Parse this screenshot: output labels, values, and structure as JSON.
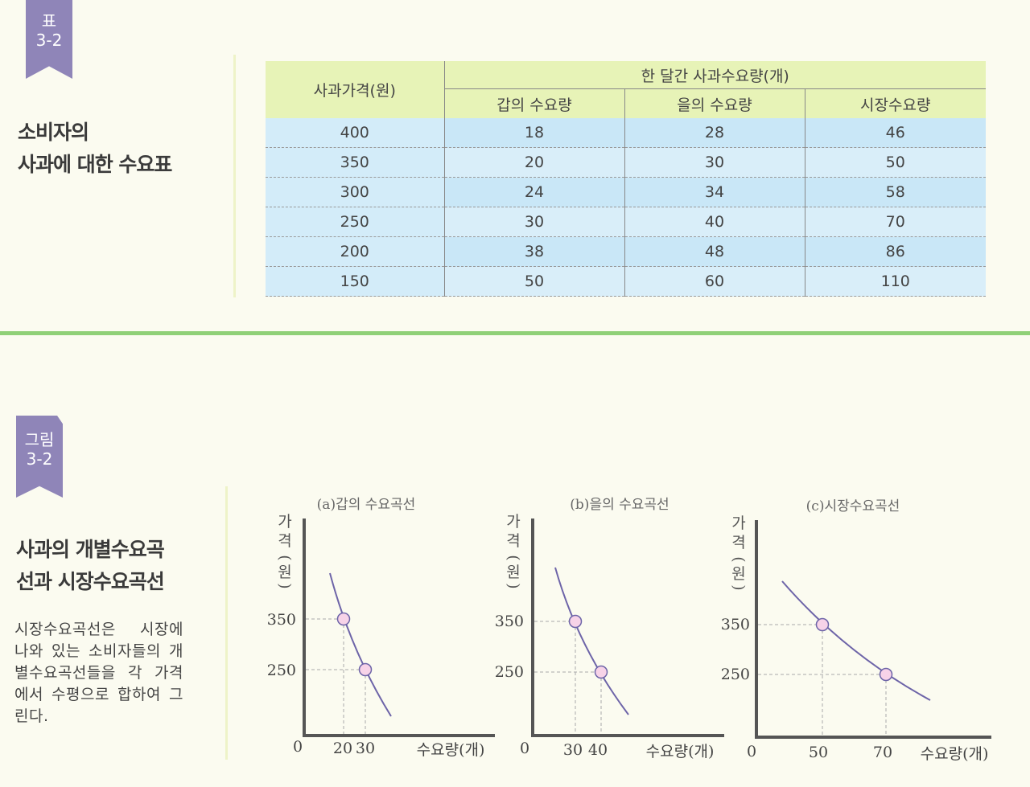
{
  "table_label": {
    "kind": "표",
    "number": "3-2"
  },
  "table_title": [
    "소비자의",
    "사과에 대한 수요표"
  ],
  "table": {
    "price_header": "사과가격(원)",
    "group_header": "한 달간 사과수요량(개)",
    "columns": [
      "갑의 수요량",
      "을의 수요량",
      "시장수요량"
    ],
    "rows": [
      [
        "400",
        "18",
        "28",
        "46"
      ],
      [
        "350",
        "20",
        "30",
        "50"
      ],
      [
        "300",
        "24",
        "34",
        "58"
      ],
      [
        "250",
        "30",
        "40",
        "70"
      ],
      [
        "200",
        "38",
        "48",
        "86"
      ],
      [
        "150",
        "50",
        "60",
        "110"
      ]
    ]
  },
  "figure_label": {
    "kind": "그림",
    "number": "3-2"
  },
  "figure_title": [
    "사과의 개별수요곡",
    "선과 시장수요곡선"
  ],
  "figure_desc": "시장수요곡선은 시장에 나와 있는 소비자들의 개별수요곡선들을 각 가격에서 수평으로 합하여 그린다.",
  "charts": [
    {
      "title": "(a)갑의 수요곡선",
      "ylabel": [
        "가",
        "격",
        "(",
        "원",
        ")"
      ],
      "xlabel": "수요량(개)",
      "origin": "0",
      "y_ticks": [
        "350",
        "250"
      ],
      "x_ticks": [
        "20",
        "30"
      ],
      "points": [
        {
          "x": "20",
          "y": "350"
        },
        {
          "x": "30",
          "y": "250"
        }
      ]
    },
    {
      "title": "(b)을의 수요곡선",
      "ylabel": [
        "가",
        "격",
        "(",
        "원",
        ")"
      ],
      "xlabel": "수요량(개)",
      "origin": "0",
      "y_ticks": [
        "350",
        "250"
      ],
      "x_ticks": [
        "30",
        "40"
      ],
      "points": [
        {
          "x": "30",
          "y": "350"
        },
        {
          "x": "40",
          "y": "250"
        }
      ]
    },
    {
      "title": "(c)시장수요곡선",
      "ylabel": [
        "가",
        "격",
        "(",
        "원",
        ")"
      ],
      "xlabel": "수요량(개)",
      "origin": "0",
      "y_ticks": [
        "350",
        "250"
      ],
      "x_ticks": [
        "50",
        "70"
      ],
      "points": [
        {
          "x": "50",
          "y": "350"
        },
        {
          "x": "70",
          "y": "250"
        }
      ]
    }
  ],
  "colors": {
    "label_bg": "#8f85b8",
    "curve": "#6d64a8",
    "point_fill": "#f7d3e8",
    "divider": "#8fd077",
    "table_head": "#e7f3b7",
    "table_body": "#c9e7f7"
  }
}
